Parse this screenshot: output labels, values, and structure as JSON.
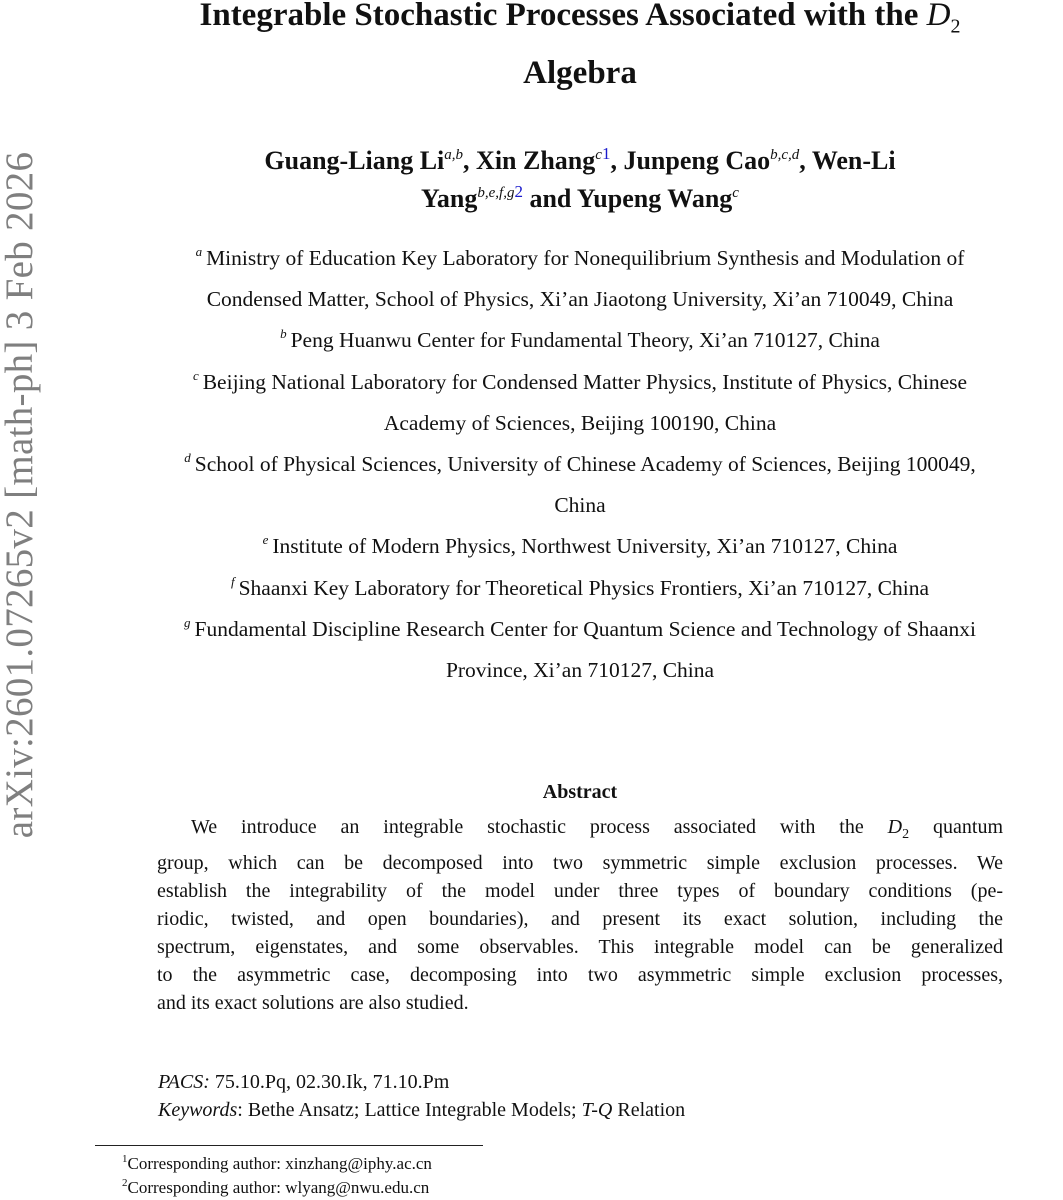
{
  "stamp": "arXiv:2601.07265v2  [math-ph]  3 Feb 2026",
  "title": {
    "line1": "Integrable Stochastic Processes Associated with the",
    "math": "D",
    "math_sub": "2",
    "line2": "Algebra"
  },
  "authors": [
    {
      "name": "Guang-Liang Li",
      "sup": "a,b",
      "fn": ""
    },
    {
      "name": "Xin Zhang",
      "sup": "c",
      "fn": "1"
    },
    {
      "name": "Junpeng Cao",
      "sup": "b,c,d",
      "fn": ""
    },
    {
      "name_part1": "Wen-Li",
      "name_part2": "Yang",
      "sup": "b,e,f,g",
      "fn": "2"
    },
    {
      "name": "Yupeng Wang",
      "sup": "c",
      "fn": ""
    }
  ],
  "authors_and": "and",
  "affiliations": [
    {
      "mark": "a",
      "lines": [
        "Ministry of Education Key Laboratory for Nonequilibrium Synthesis and Modulation of",
        "Condensed Matter, School of Physics, Xi’an Jiaotong University, Xi’an 710049, China"
      ]
    },
    {
      "mark": "b",
      "lines": [
        "Peng Huanwu Center for Fundamental Theory, Xi’an 710127, China"
      ]
    },
    {
      "mark": "c",
      "lines": [
        "Beijing National Laboratory for Condensed Matter Physics, Institute of Physics, Chinese",
        "Academy of Sciences, Beijing 100190, China"
      ]
    },
    {
      "mark": "d",
      "lines": [
        "School of Physical Sciences, University of Chinese Academy of Sciences, Beijing 100049,",
        "China"
      ]
    },
    {
      "mark": "e",
      "lines": [
        "Institute of Modern Physics, Northwest University, Xi’an 710127, China"
      ]
    },
    {
      "mark": "f",
      "lines": [
        "Shaanxi Key Laboratory for Theoretical Physics Frontiers, Xi’an 710127, China"
      ]
    },
    {
      "mark": "g",
      "lines": [
        "Fundamental Discipline Research Center for Quantum Science and Technology of Shaanxi",
        "Province, Xi’an 710127, China"
      ]
    }
  ],
  "abstract": {
    "heading": "Abstract",
    "line0_a": "We introduce an integrable stochastic process associated with the",
    "line0_math": "D",
    "line0_sub": "2",
    "line0_b": "quantum",
    "lines": [
      "group, which can be decomposed into two symmetric simple exclusion processes. We",
      "establish the integrability of the model under three types of boundary conditions (pe-",
      "riodic, twisted, and open boundaries), and present its exact solution, including the",
      "spectrum, eigenstates, and some observables. This integrable model can be generalized",
      "to the asymmetric case, decomposing into two asymmetric simple exclusion processes,",
      "and its exact solutions are also studied."
    ]
  },
  "pacs": {
    "label": "PACS:",
    "value": "75.10.Pq, 02.30.Ik, 71.10.Pm"
  },
  "keywords": {
    "label": "Keywords",
    "value": ": Bethe Ansatz; Lattice Integrable Models; ",
    "math": "T-Q",
    "tail": " Relation"
  },
  "footnotes": [
    {
      "mark": "1",
      "text": "Corresponding author: xinzhang@iphy.ac.cn"
    },
    {
      "mark": "2",
      "text": "Corresponding author: wlyang@nwu.edu.cn"
    }
  ]
}
